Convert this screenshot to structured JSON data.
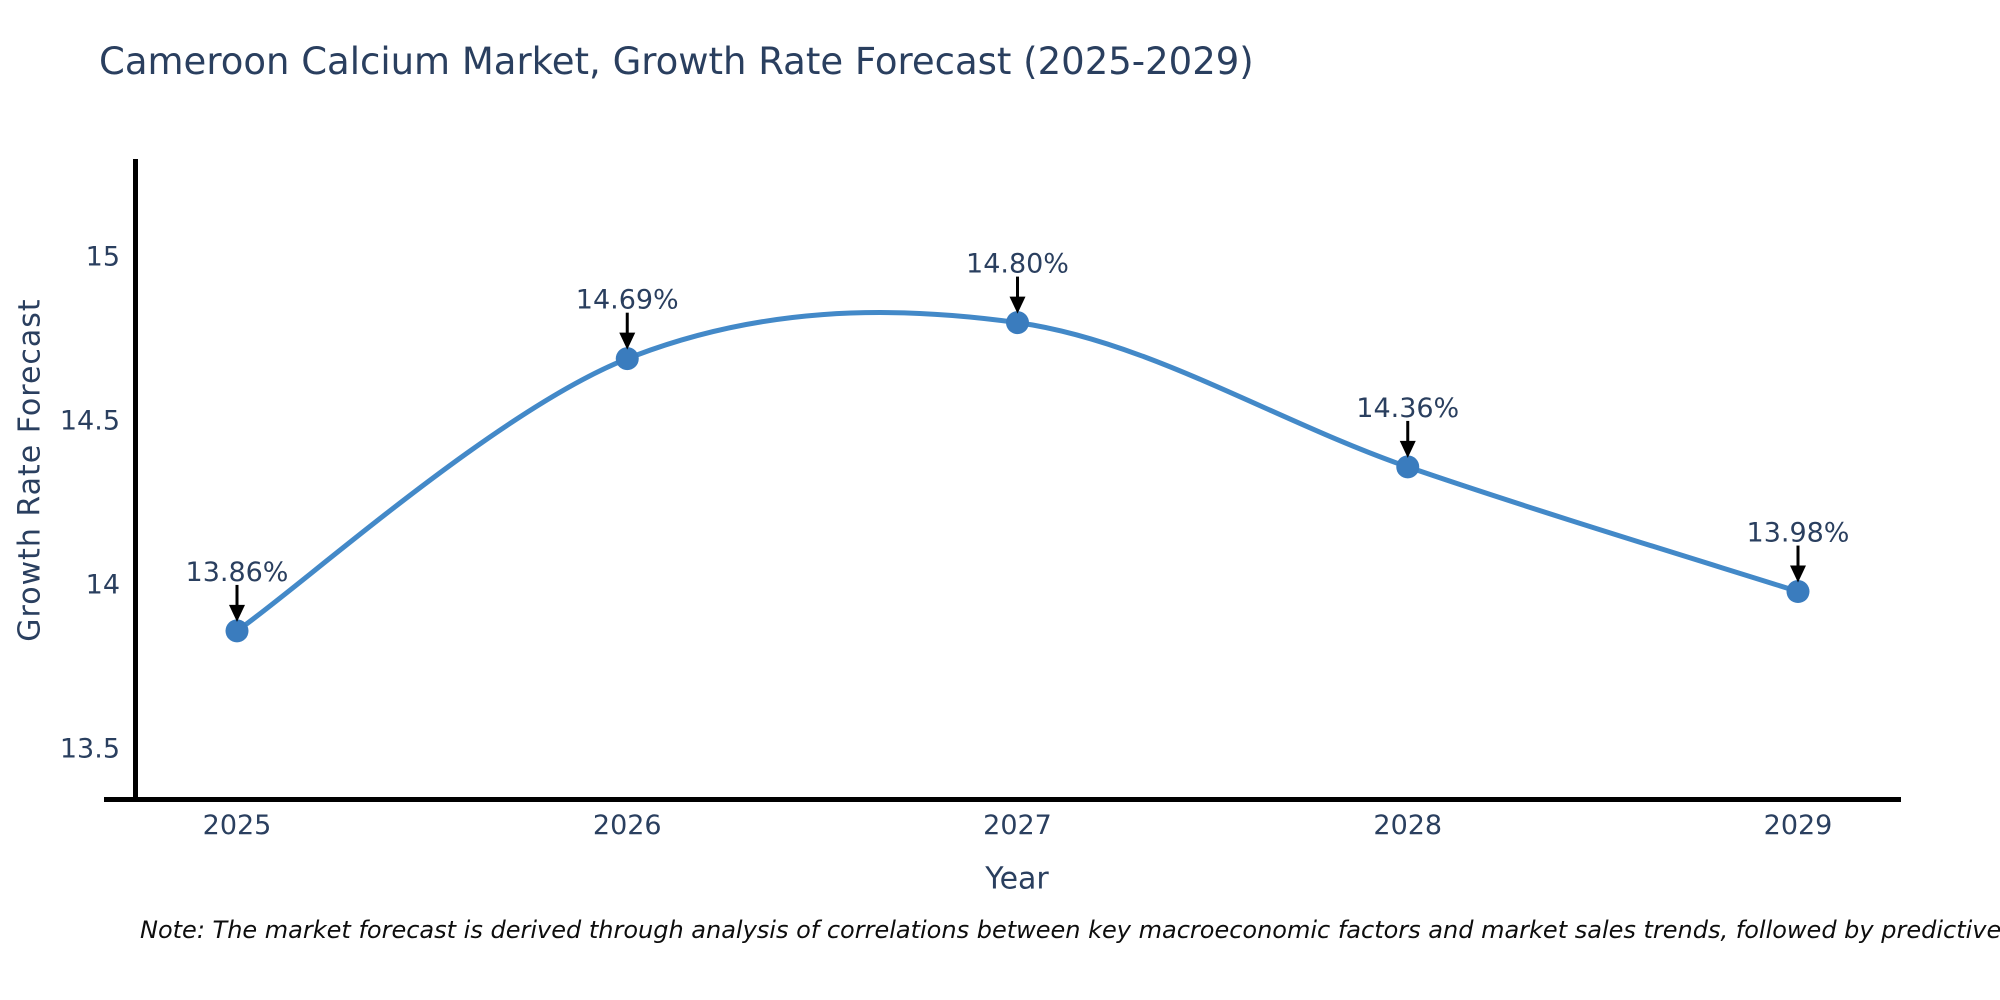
{
  "title": "Cameroon Calcium Market, Growth Rate Forecast (2025-2029)",
  "note": "Note: The market forecast is derived through analysis of correlations between key macroeconomic factors and market sales trends, followed by predictive modeling to project future sales.",
  "chart_data": {
    "type": "line",
    "line_shape": "spline",
    "title": "Cameroon Calcium Market, Growth Rate Forecast (2025-2029)",
    "xlabel": "Year",
    "ylabel": "Growth Rate Forecast",
    "x": [
      2025,
      2026,
      2027,
      2028,
      2029
    ],
    "values": [
      13.86,
      14.69,
      14.8,
      14.36,
      13.98
    ],
    "point_labels": [
      "13.86%",
      "14.69%",
      "14.80%",
      "14.36%",
      "13.98%"
    ],
    "x_tick_labels": [
      "2025",
      "2026",
      "2027",
      "2028",
      "2029"
    ],
    "y_ticks": [
      13.5,
      14,
      14.5,
      15
    ],
    "y_tick_labels": [
      "13.5",
      "14",
      "14.5",
      "15"
    ],
    "ylim": [
      13.34,
      15.3
    ],
    "grid": false,
    "legend": "none",
    "annotations_style": "value label with downward black arrow onto each marker",
    "colors": {
      "line": "#4389c8",
      "marker": "#3a7cbe",
      "arrow": "#000000",
      "axis": "#000000",
      "tick_text": "#2a3f5f",
      "title_text": "#2a3f5f"
    }
  }
}
